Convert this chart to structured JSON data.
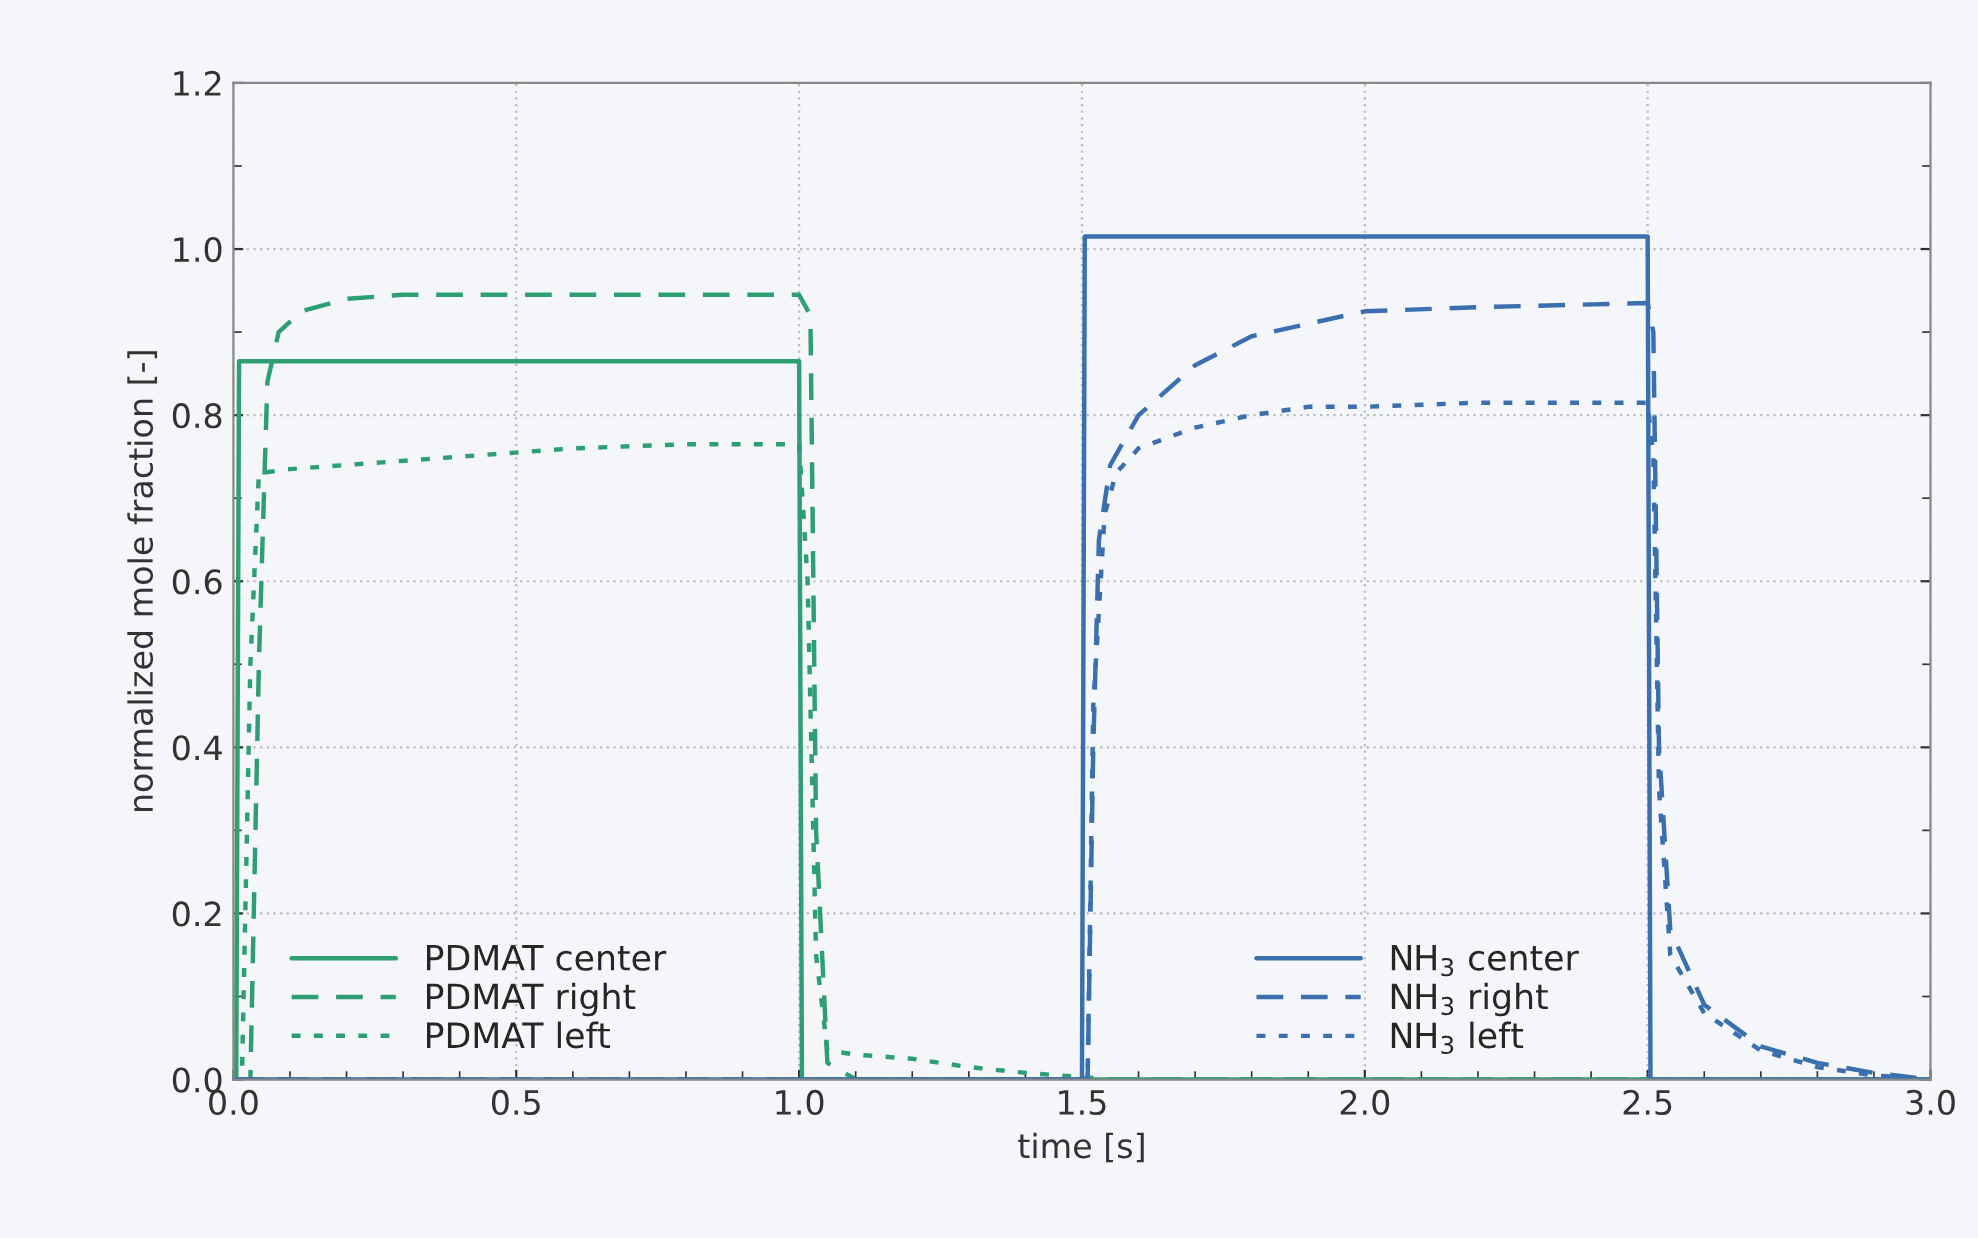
{
  "chart_data": {
    "type": "line",
    "xlabel": "time [s]",
    "ylabel": "normalized mole fraction [-]",
    "xlim": [
      0.0,
      3.0
    ],
    "ylim": [
      0.0,
      1.2
    ],
    "xticks": [
      {
        "value": 0.0,
        "label": "0.0"
      },
      {
        "value": 0.5,
        "label": "0.5"
      },
      {
        "value": 1.0,
        "label": "1.0"
      },
      {
        "value": 1.5,
        "label": "1.5"
      },
      {
        "value": 2.0,
        "label": "2.0"
      },
      {
        "value": 2.5,
        "label": "2.5"
      },
      {
        "value": 3.0,
        "label": "3.0"
      }
    ],
    "yticks": [
      {
        "value": 0.0,
        "label": "0.0"
      },
      {
        "value": 0.2,
        "label": "0.2"
      },
      {
        "value": 0.4,
        "label": "0.4"
      },
      {
        "value": 0.6,
        "label": "0.6"
      },
      {
        "value": 0.8,
        "label": "0.8"
      },
      {
        "value": 1.0,
        "label": "1.0"
      },
      {
        "value": 1.2,
        "label": "1.2"
      }
    ],
    "grid": true,
    "legend": "bottom",
    "marker": "none",
    "series": [
      {
        "name": "PDMAT center",
        "color": "#2e9e74",
        "line_style": "solid",
        "x": [
          0.0,
          0.005,
          0.01,
          1.0,
          1.005,
          1.01,
          3.0
        ],
        "values": [
          0.0,
          0.0,
          0.865,
          0.865,
          0.0,
          0.0,
          0.0
        ]
      },
      {
        "name": "PDMAT right",
        "color": "#2e9e74",
        "line_style": "dashed",
        "x": [
          0.0,
          0.03,
          0.045,
          0.06,
          0.08,
          0.12,
          0.2,
          0.3,
          0.5,
          0.8,
          1.0,
          1.02,
          1.03,
          1.05,
          1.1,
          3.0
        ],
        "values": [
          0.0,
          0.0,
          0.5,
          0.84,
          0.9,
          0.925,
          0.94,
          0.945,
          0.945,
          0.945,
          0.945,
          0.92,
          0.3,
          0.02,
          0.0,
          0.0
        ]
      },
      {
        "name": "PDMAT left",
        "color": "#2e9e74",
        "line_style": "dotted",
        "x": [
          0.0,
          0.015,
          0.03,
          0.045,
          0.1,
          0.2,
          0.4,
          0.6,
          0.8,
          1.0,
          1.015,
          1.03,
          1.05,
          1.1,
          1.2,
          1.3,
          1.4,
          1.5,
          1.55,
          3.0
        ],
        "values": [
          0.0,
          0.0,
          0.5,
          0.73,
          0.735,
          0.74,
          0.75,
          0.76,
          0.765,
          0.765,
          0.6,
          0.15,
          0.035,
          0.03,
          0.025,
          0.015,
          0.008,
          0.003,
          0.0,
          0.0
        ]
      },
      {
        "name": "NH$_{3}$ center",
        "color": "#3b6fae",
        "line_style": "solid",
        "x": [
          0.0,
          1.5,
          1.505,
          2.5,
          2.505,
          3.0
        ],
        "values": [
          0.0,
          0.0,
          1.015,
          1.015,
          0.0,
          0.0
        ]
      },
      {
        "name": "NH$_{3}$ right",
        "color": "#3b6fae",
        "line_style": "dashed",
        "x": [
          0.0,
          1.51,
          1.52,
          1.53,
          1.55,
          1.6,
          1.7,
          1.8,
          1.9,
          2.0,
          2.2,
          2.5,
          2.51,
          2.52,
          2.54,
          2.6,
          2.7,
          2.8,
          2.9,
          3.0
        ],
        "values": [
          0.0,
          0.0,
          0.4,
          0.65,
          0.74,
          0.8,
          0.86,
          0.895,
          0.91,
          0.925,
          0.93,
          0.935,
          0.9,
          0.4,
          0.18,
          0.09,
          0.04,
          0.02,
          0.008,
          0.0
        ]
      },
      {
        "name": "NH$_{3}$ left",
        "color": "#3b6fae",
        "line_style": "dotted",
        "x": [
          0.0,
          1.51,
          1.52,
          1.54,
          1.56,
          1.6,
          1.7,
          1.8,
          1.9,
          2.0,
          2.2,
          2.5,
          2.51,
          2.52,
          2.54,
          2.6,
          2.7,
          2.8,
          2.9,
          3.0
        ],
        "values": [
          0.0,
          0.0,
          0.45,
          0.68,
          0.73,
          0.76,
          0.785,
          0.8,
          0.81,
          0.81,
          0.815,
          0.815,
          0.75,
          0.35,
          0.15,
          0.08,
          0.035,
          0.015,
          0.005,
          0.0
        ]
      }
    ]
  }
}
